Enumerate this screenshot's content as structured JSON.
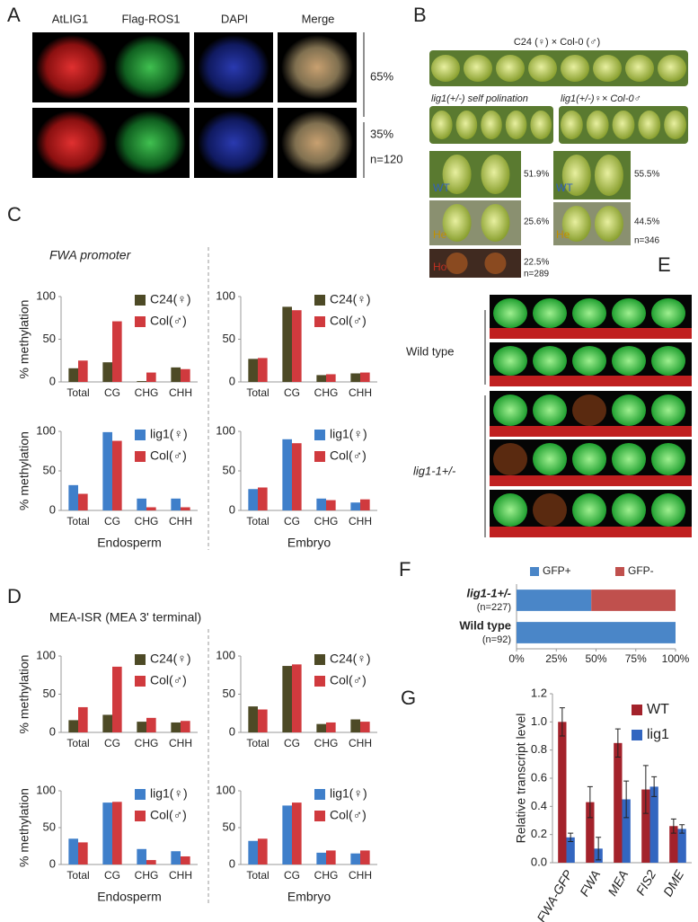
{
  "panels": {
    "A": {
      "letter": "A",
      "columns": [
        "AtLIG1",
        "Flag-ROS1",
        "DAPI",
        "Merge"
      ],
      "percents": [
        "65%",
        "35%"
      ],
      "n": "n=120"
    },
    "B": {
      "letter": "B",
      "cross": "C24 (♀) × Col-0 (♂)",
      "self": "lig1(+/-) self polination",
      "backcross": "lig1(+/-)♀× Col-0♂",
      "left_classes": [
        "WT",
        "He",
        "Ho"
      ],
      "left_percents": [
        "51.9%",
        "25.6%",
        "22.5%"
      ],
      "left_n": "n=289",
      "right_classes": [
        "WT",
        "He"
      ],
      "right_percents": [
        "55.5%",
        "44.5%"
      ],
      "right_n": "n=346"
    },
    "C": {
      "letter": "C",
      "title": "FWA promoter"
    },
    "D": {
      "letter": "D",
      "title": "MEA-ISR (MEA 3' terminal)"
    },
    "E": {
      "letter": "E",
      "groups": [
        "Wild type",
        "lig1-1+/-"
      ]
    },
    "F": {
      "letter": "F"
    },
    "G": {
      "letter": "G"
    }
  },
  "chart_data": [
    {
      "type": "bar",
      "y_label": "% methylation",
      "categories": [
        "Total",
        "CG",
        "CHG",
        "CHH"
      ],
      "ylim": [
        0,
        100
      ],
      "yticks": [
        0,
        50,
        100
      ],
      "series": [
        {
          "name": "C24(♀)",
          "color": "#4d4a26",
          "values": [
            16,
            23,
            1,
            17
          ]
        },
        {
          "name": "Col(♂)",
          "color": "#d03a3e",
          "values": [
            25,
            71,
            11,
            15
          ]
        }
      ]
    },
    {
      "type": "bar",
      "categories": [
        "Total",
        "CG",
        "CHG",
        "CHH"
      ],
      "ylim": [
        0,
        100
      ],
      "yticks": [
        0,
        50,
        100
      ],
      "series": [
        {
          "name": "C24(♀)",
          "color": "#4d4a26",
          "values": [
            27,
            88,
            8,
            10
          ]
        },
        {
          "name": "Col(♂)",
          "color": "#d03a3e",
          "values": [
            28,
            84,
            9,
            11
          ]
        }
      ]
    },
    {
      "type": "bar",
      "y_label": "% methylation",
      "x_label": "Endosperm",
      "categories": [
        "Total",
        "CG",
        "CHG",
        "CHH"
      ],
      "ylim": [
        0,
        100
      ],
      "yticks": [
        0,
        50,
        100
      ],
      "series": [
        {
          "name": "lig1(♀)",
          "color": "#3f7fca",
          "values": [
            32,
            99,
            15,
            15
          ]
        },
        {
          "name": "Col(♂)",
          "color": "#d03a3e",
          "values": [
            21,
            88,
            4,
            4
          ]
        }
      ]
    },
    {
      "type": "bar",
      "x_label": "Embryo",
      "categories": [
        "Total",
        "CG",
        "CHG",
        "CHH"
      ],
      "ylim": [
        0,
        100
      ],
      "yticks": [
        0,
        50,
        100
      ],
      "series": [
        {
          "name": "lig1(♀)",
          "color": "#3f7fca",
          "values": [
            27,
            90,
            15,
            10
          ]
        },
        {
          "name": "Col(♂)",
          "color": "#d03a3e",
          "values": [
            29,
            85,
            13,
            14
          ]
        }
      ]
    },
    {
      "type": "bar",
      "y_label": "% methylation",
      "categories": [
        "Total",
        "CG",
        "CHG",
        "CHH"
      ],
      "ylim": [
        0,
        100
      ],
      "yticks": [
        0,
        50,
        100
      ],
      "series": [
        {
          "name": "C24(♀)",
          "color": "#4d4a26",
          "values": [
            16,
            23,
            14,
            13
          ]
        },
        {
          "name": "Col(♂)",
          "color": "#d03a3e",
          "values": [
            33,
            86,
            19,
            15
          ]
        }
      ]
    },
    {
      "type": "bar",
      "categories": [
        "Total",
        "CG",
        "CHG",
        "CHH"
      ],
      "ylim": [
        0,
        100
      ],
      "yticks": [
        0,
        50,
        100
      ],
      "series": [
        {
          "name": "C24(♀)",
          "color": "#4d4a26",
          "values": [
            34,
            87,
            11,
            17
          ]
        },
        {
          "name": "Col(♂)",
          "color": "#d03a3e",
          "values": [
            30,
            89,
            13,
            14
          ]
        }
      ]
    },
    {
      "type": "bar",
      "y_label": "% methylation",
      "x_label": "Endosperm",
      "categories": [
        "Total",
        "CG",
        "CHG",
        "CHH"
      ],
      "ylim": [
        0,
        100
      ],
      "yticks": [
        0,
        50,
        100
      ],
      "series": [
        {
          "name": "lig1(♀)",
          "color": "#3f7fca",
          "values": [
            35,
            84,
            21,
            18
          ]
        },
        {
          "name": "Col(♂)",
          "color": "#d03a3e",
          "values": [
            30,
            85,
            6,
            11
          ]
        }
      ]
    },
    {
      "type": "bar",
      "x_label": "Embryo",
      "categories": [
        "Total",
        "CG",
        "CHG",
        "CHH"
      ],
      "ylim": [
        0,
        100
      ],
      "yticks": [
        0,
        50,
        100
      ],
      "series": [
        {
          "name": "lig1(♀)",
          "color": "#3f7fca",
          "values": [
            32,
            80,
            16,
            15
          ]
        },
        {
          "name": "Col(♂)",
          "color": "#d03a3e",
          "values": [
            35,
            84,
            19,
            19
          ]
        }
      ]
    },
    {
      "type": "barh",
      "stacked": true,
      "categories": [
        "lig1-1+/-",
        "Wild type"
      ],
      "category_notes": [
        "(n=227)",
        "(n=92)"
      ],
      "xlim": [
        0,
        100
      ],
      "xticks": [
        {
          "value": 0,
          "label": "0%"
        },
        {
          "value": 25,
          "label": "25%"
        },
        {
          "value": 50,
          "label": "50%"
        },
        {
          "value": 75,
          "label": "75%"
        },
        {
          "value": 100,
          "label": "100%"
        }
      ],
      "series": [
        {
          "name": "GFP+",
          "color": "#4a86c8",
          "values": [
            47,
            100
          ]
        },
        {
          "name": "GFP-",
          "color": "#c0504d",
          "values": [
            53,
            0
          ]
        }
      ]
    },
    {
      "type": "bar",
      "y_label": "Relative transcript level",
      "categories": [
        "FWA-GFP",
        "FWA",
        "MEA",
        "FIS2",
        "DME"
      ],
      "ylim": [
        0,
        1.2
      ],
      "yticks": [
        {
          "value": 0,
          "label": "0.0"
        },
        0.2,
        0.4,
        0.6,
        0.8,
        {
          "value": 1,
          "label": "1.0"
        },
        1.2
      ],
      "series": [
        {
          "name": "WT",
          "color": "#a3222b",
          "values": [
            1.0,
            0.43,
            0.85,
            0.52,
            0.26
          ],
          "errors": [
            0.1,
            0.11,
            0.1,
            0.17,
            0.05
          ]
        },
        {
          "name": "lig1",
          "color": "#3366c0",
          "values": [
            0.18,
            0.1,
            0.45,
            0.54,
            0.24
          ],
          "errors": [
            0.03,
            0.08,
            0.13,
            0.07,
            0.03
          ]
        }
      ]
    }
  ]
}
